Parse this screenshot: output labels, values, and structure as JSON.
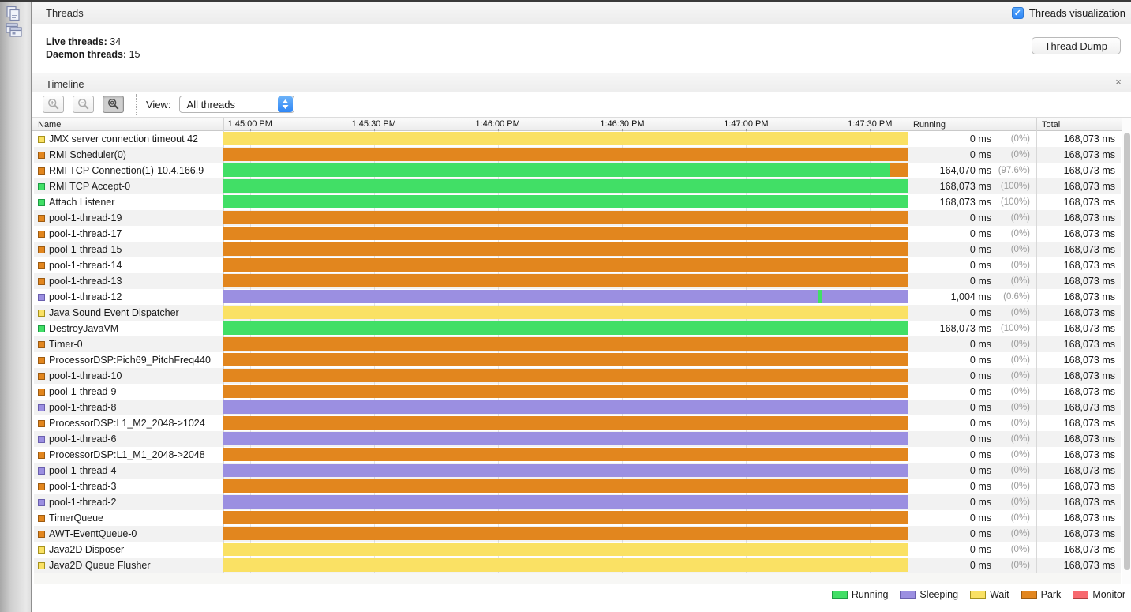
{
  "header": {
    "title": "Threads",
    "visualization_label": "Threads visualization",
    "visualization_checked": true,
    "check_glyph": "✓"
  },
  "summary": {
    "live_label": "Live threads:",
    "live_value": "34",
    "daemon_label": "Daemon threads:",
    "daemon_value": "15",
    "thread_dump_button": "Thread Dump"
  },
  "timeline": {
    "title": "Timeline",
    "close_glyph": "×",
    "view_label": "View:",
    "view_value": "All threads",
    "columns": {
      "name": "Name",
      "running": "Running",
      "total": "Total"
    },
    "time_ticks": [
      {
        "label": "1:45:00 PM",
        "pct": 3.9
      },
      {
        "label": "1:45:30 PM",
        "pct": 22.0
      },
      {
        "label": "1:46:00 PM",
        "pct": 40.1
      },
      {
        "label": "1:46:30 PM",
        "pct": 58.3
      },
      {
        "label": "1:47:00 PM",
        "pct": 76.4
      },
      {
        "label": "1:47:30 PM",
        "pct": 94.5
      }
    ],
    "threads": [
      {
        "name": "JMX server connection timeout 42",
        "state": "wait",
        "running": "0 ms",
        "running_pct": "(0%)",
        "total": "168,073 ms"
      },
      {
        "name": "RMI Scheduler(0)",
        "state": "park",
        "running": "0 ms",
        "running_pct": "(0%)",
        "total": "168,073 ms"
      },
      {
        "name": "RMI TCP Connection(1)-10.4.166.9",
        "state": "park",
        "running": "164,070 ms",
        "running_pct": "(97.6%)",
        "total": "168,073 ms",
        "segments": [
          {
            "state": "running",
            "pct": 97.5
          },
          {
            "state": "park",
            "pct": 2.5
          }
        ]
      },
      {
        "name": "RMI TCP Accept-0",
        "state": "running",
        "running": "168,073 ms",
        "running_pct": "(100%)",
        "total": "168,073 ms"
      },
      {
        "name": "Attach Listener",
        "state": "running",
        "running": "168,073 ms",
        "running_pct": "(100%)",
        "total": "168,073 ms"
      },
      {
        "name": "pool-1-thread-19",
        "state": "park",
        "running": "0 ms",
        "running_pct": "(0%)",
        "total": "168,073 ms"
      },
      {
        "name": "pool-1-thread-17",
        "state": "park",
        "running": "0 ms",
        "running_pct": "(0%)",
        "total": "168,073 ms"
      },
      {
        "name": "pool-1-thread-15",
        "state": "park",
        "running": "0 ms",
        "running_pct": "(0%)",
        "total": "168,073 ms"
      },
      {
        "name": "pool-1-thread-14",
        "state": "park",
        "running": "0 ms",
        "running_pct": "(0%)",
        "total": "168,073 ms"
      },
      {
        "name": "pool-1-thread-13",
        "state": "park",
        "running": "0 ms",
        "running_pct": "(0%)",
        "total": "168,073 ms"
      },
      {
        "name": "pool-1-thread-12",
        "state": "sleeping",
        "running": "1,004 ms",
        "running_pct": "(0.6%)",
        "total": "168,073 ms",
        "segments": [
          {
            "state": "sleeping",
            "pct": 86.8
          },
          {
            "state": "running",
            "pct": 0.6
          },
          {
            "state": "sleeping",
            "pct": 12.6
          }
        ]
      },
      {
        "name": "Java Sound Event Dispatcher",
        "state": "wait",
        "running": "0 ms",
        "running_pct": "(0%)",
        "total": "168,073 ms"
      },
      {
        "name": "DestroyJavaVM",
        "state": "running",
        "running": "168,073 ms",
        "running_pct": "(100%)",
        "total": "168,073 ms"
      },
      {
        "name": "Timer-0",
        "state": "park",
        "running": "0 ms",
        "running_pct": "(0%)",
        "total": "168,073 ms"
      },
      {
        "name": "ProcessorDSP:Pich69_PitchFreq440",
        "state": "park",
        "running": "0 ms",
        "running_pct": "(0%)",
        "total": "168,073 ms"
      },
      {
        "name": "pool-1-thread-10",
        "state": "park",
        "running": "0 ms",
        "running_pct": "(0%)",
        "total": "168,073 ms"
      },
      {
        "name": "pool-1-thread-9",
        "state": "park",
        "running": "0 ms",
        "running_pct": "(0%)",
        "total": "168,073 ms"
      },
      {
        "name": "pool-1-thread-8",
        "state": "sleeping",
        "running": "0 ms",
        "running_pct": "(0%)",
        "total": "168,073 ms"
      },
      {
        "name": "ProcessorDSP:L1_M2_2048->1024",
        "state": "park",
        "running": "0 ms",
        "running_pct": "(0%)",
        "total": "168,073 ms"
      },
      {
        "name": "pool-1-thread-6",
        "state": "sleeping",
        "running": "0 ms",
        "running_pct": "(0%)",
        "total": "168,073 ms"
      },
      {
        "name": "ProcessorDSP:L1_M1_2048->2048",
        "state": "park",
        "running": "0 ms",
        "running_pct": "(0%)",
        "total": "168,073 ms"
      },
      {
        "name": "pool-1-thread-4",
        "state": "sleeping",
        "running": "0 ms",
        "running_pct": "(0%)",
        "total": "168,073 ms"
      },
      {
        "name": "pool-1-thread-3",
        "state": "park",
        "running": "0 ms",
        "running_pct": "(0%)",
        "total": "168,073 ms"
      },
      {
        "name": "pool-1-thread-2",
        "state": "sleeping",
        "running": "0 ms",
        "running_pct": "(0%)",
        "total": "168,073 ms"
      },
      {
        "name": "TimerQueue",
        "state": "park",
        "running": "0 ms",
        "running_pct": "(0%)",
        "total": "168,073 ms"
      },
      {
        "name": "AWT-EventQueue-0",
        "state": "park",
        "running": "0 ms",
        "running_pct": "(0%)",
        "total": "168,073 ms"
      },
      {
        "name": "Java2D Disposer",
        "state": "wait",
        "running": "0 ms",
        "running_pct": "(0%)",
        "total": "168,073 ms"
      },
      {
        "name": "Java2D Queue Flusher",
        "state": "wait",
        "running": "0 ms",
        "running_pct": "(0%)",
        "total": "168,073 ms"
      }
    ],
    "legend": [
      {
        "label": "Running",
        "state": "running"
      },
      {
        "label": "Sleeping",
        "state": "sleeping"
      },
      {
        "label": "Wait",
        "state": "wait"
      },
      {
        "label": "Park",
        "state": "park"
      },
      {
        "label": "Monitor",
        "state": "monitor"
      }
    ]
  },
  "colors": {
    "running": {
      "fill": "#41df66",
      "border": "#1e9b44"
    },
    "sleeping": {
      "fill": "#9b8fe1",
      "border": "#6a5fae"
    },
    "wait": {
      "fill": "#fae164",
      "border": "#a6921d"
    },
    "park": {
      "fill": "#e2861e",
      "border": "#9c5b12"
    },
    "monitor": {
      "fill": "#f7696f",
      "border": "#b04040"
    }
  }
}
